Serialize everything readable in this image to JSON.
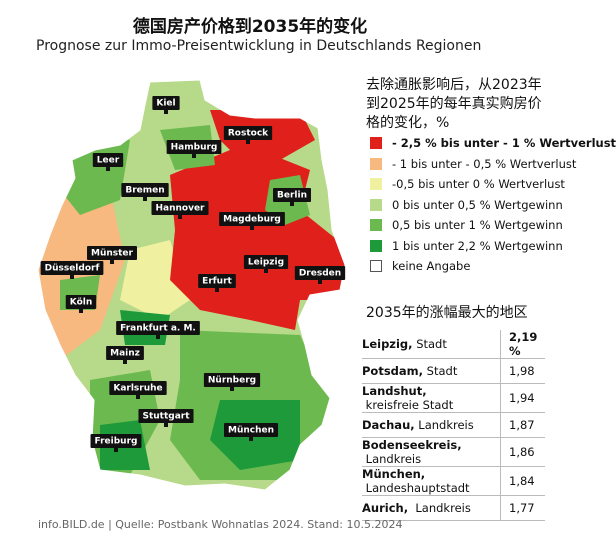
{
  "header": {
    "title": "德国房产价格到2035年的变化",
    "subtitle": "Prognose zur Immo-Preisentwicklung in Deutschlands Regionen"
  },
  "map": {
    "cities": [
      "Kiel",
      "Rostock",
      "Hamburg",
      "Leer",
      "Bremen",
      "Berlin",
      "Hannover",
      "Magdeburg",
      "Münster",
      "Leipzig",
      "Düsseldorf",
      "Dresden",
      "Erfurt",
      "Köln",
      "Frankfurt a. M.",
      "Mainz",
      "Nürnberg",
      "Karlsruhe",
      "Stuttgart",
      "München",
      "Freiburg"
    ]
  },
  "legend": {
    "title_lines": [
      "去除通胀影响后，从2023年",
      "到2025年的每年真实购房价",
      "格的变化，%"
    ],
    "items": [
      {
        "label": "- 2,5 % bis unter - 1 % Wertverlust",
        "color": "#e0201b"
      },
      {
        "label": "- 1 bis unter - 0,5 % Wertverlust",
        "color": "#f7b980"
      },
      {
        "label": "-0,5 bis unter 0 % Wertverlust",
        "color": "#eff0a0"
      },
      {
        "label": "0  bis unter 0,5 % Wertgewinn",
        "color": "#b7d98a"
      },
      {
        "label": "0,5  bis unter 1 % Wertgewinn",
        "color": "#6cb94f"
      },
      {
        "label": "1  bis unter 2,2 % Wertgewinn",
        "color": "#1f9a3b"
      },
      {
        "label": "keine Angabe",
        "color": "#ffffff"
      }
    ]
  },
  "table": {
    "title": "2035年的涨幅最大的地区",
    "rows": [
      {
        "name": "Leipzig,",
        "kind": " Stadt",
        "value": "2,19 %"
      },
      {
        "name": "Potsdam,",
        "kind": " Stadt",
        "value": "1,98"
      },
      {
        "name": "Landshut,",
        "kind": " kreisfreie Stadt",
        "value": "1,94"
      },
      {
        "name": "Dachau,",
        "kind": " Landkreis",
        "value": "1,87"
      },
      {
        "name": "Bodenseekreis,",
        "kind": " Landkreis",
        "value": "1,86"
      },
      {
        "name": "München,",
        "kind": " Landeshauptstadt",
        "value": "1,84"
      },
      {
        "name": "Aurich,",
        "kind": "  Landkreis",
        "value": "1,77"
      }
    ]
  },
  "footer": "info.BILD.de | Quelle: Postbank Wohnatlas 2024. Stand: 10.5.2024"
}
